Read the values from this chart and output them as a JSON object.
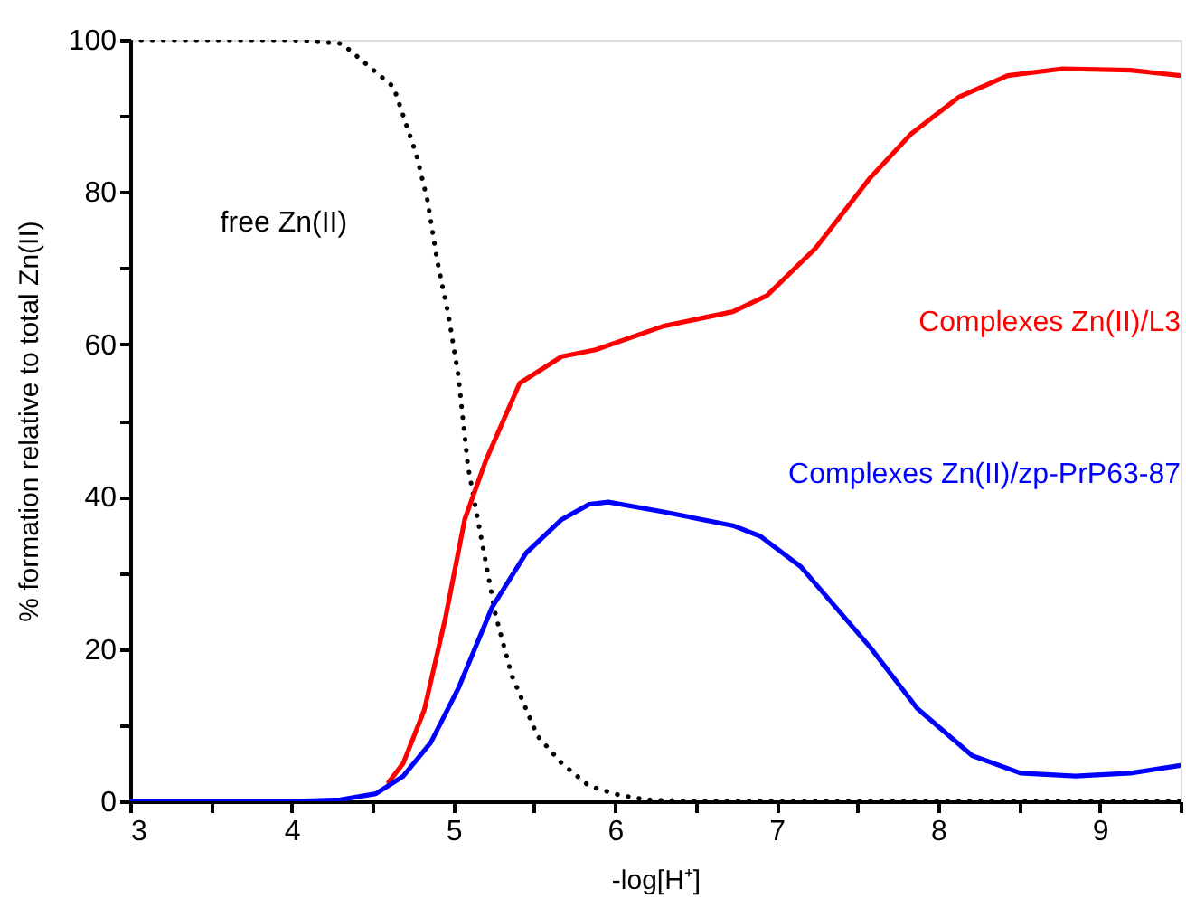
{
  "chart_data": {
    "type": "line",
    "xlabel": "-log[H⁺]",
    "ylabel": "% formation relative to total Zn(II)",
    "xlim": [
      3,
      9.5
    ],
    "ylim": [
      0,
      100
    ],
    "xticks": [
      3,
      {
        "value": 3.5,
        "label": null
      },
      4,
      {
        "value": 4.5,
        "label": null
      },
      5,
      {
        "value": 5.5,
        "label": null
      },
      6,
      {
        "value": 6.5,
        "label": null
      },
      7,
      {
        "value": 7.5,
        "label": null
      },
      8,
      {
        "value": 8.5,
        "label": null
      },
      9,
      {
        "value": 9.5,
        "label": null
      }
    ],
    "yticks": [
      0,
      {
        "value": 10,
        "label": null
      },
      20,
      {
        "value": 30,
        "label": null
      },
      40,
      {
        "value": 50,
        "label": null
      },
      60,
      {
        "value": 70,
        "label": null
      },
      80,
      {
        "value": 90,
        "label": null
      },
      100
    ],
    "grid": false,
    "legend": false,
    "marker": "none",
    "series": [
      {
        "name": "free Zn(II)",
        "color": "#000000",
        "line_style": "dotted",
        "x": [
          3,
          3.5,
          4,
          4.31,
          4.63,
          4.77,
          4.84,
          4.9,
          4.97,
          5.03,
          5.09,
          5.16,
          5.26,
          5.36,
          5.52,
          5.67,
          5.84,
          6.03,
          6.2,
          6.5,
          7,
          8,
          9,
          9.5
        ],
        "values": [
          100,
          100,
          100,
          99.5,
          93.8,
          85,
          78.9,
          71,
          63.8,
          56,
          44,
          36,
          24.6,
          16.6,
          8.6,
          5,
          2,
          0.8,
          0.2,
          0,
          0,
          0,
          0,
          0
        ]
      },
      {
        "name": "Complexes Zn(II)/L3",
        "color": "#ff0000",
        "line_style": "solid",
        "x": [
          4.6,
          4.69,
          4.82,
          4.95,
          5.07,
          5.2,
          5.41,
          5.67,
          5.88,
          6.3,
          6.73,
          6.94,
          7.24,
          7.58,
          7.83,
          8.13,
          8.43,
          8.77,
          9.19,
          9.5
        ],
        "values": [
          2.5,
          5,
          12,
          24,
          37,
          44.7,
          54.9,
          58.4,
          59.3,
          62.4,
          64.3,
          66.4,
          72.6,
          81.9,
          87.6,
          92.5,
          95.3,
          96.2,
          96,
          95.3
        ]
      },
      {
        "name": "Complexes Zn(II)/zp-PrP63-87",
        "color": "#0000ff",
        "line_style": "solid",
        "x": [
          3,
          4,
          4.3,
          4.52,
          4.69,
          4.86,
          5.03,
          5.24,
          5.45,
          5.67,
          5.84,
          5.96,
          6.3,
          6.73,
          6.9,
          7.15,
          7.58,
          7.87,
          8.21,
          8.51,
          8.85,
          9.19,
          9.5
        ],
        "values": [
          0,
          0,
          0.2,
          1,
          3.3,
          7.7,
          14.8,
          25.5,
          32.6,
          37,
          39,
          39.3,
          38,
          36.2,
          34.8,
          30.8,
          20.2,
          12.2,
          6,
          3.7,
          3.3,
          3.7,
          4.7
        ]
      }
    ]
  }
}
